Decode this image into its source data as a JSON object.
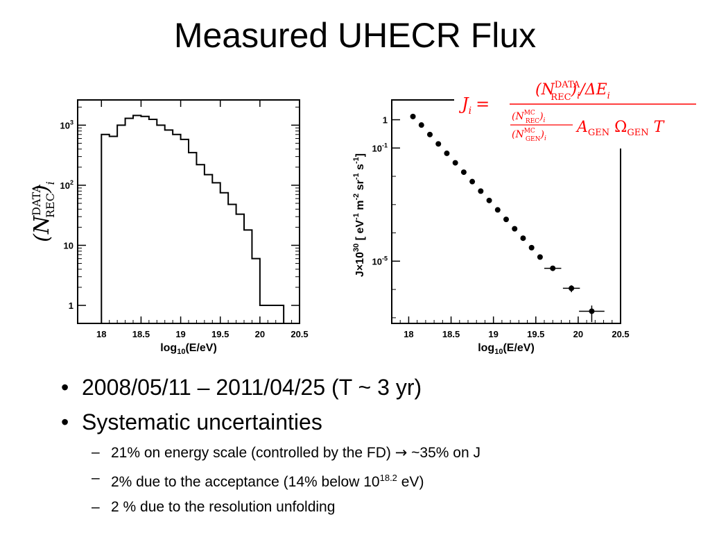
{
  "title": "Measured UHECR Flux",
  "bullets": [
    {
      "text": "2008/05/11 – 2011/04/25 (T ~ 3 yr)"
    },
    {
      "text": "Systematic uncertainties"
    }
  ],
  "sub_bullets": [
    {
      "pre": "21% on energy scale (controlled by the FD)",
      "arrow": "→",
      "post": "~35% on J"
    },
    {
      "pre": "2% due to the acceptance (14% below 10",
      "sup": "18.2",
      "post": " eV)"
    },
    {
      "pre": "2 % due to the resolution unfolding"
    }
  ],
  "bullet_marker": "•",
  "dash_marker": "–",
  "formula": {
    "color": "#ff0000",
    "lhs": "J",
    "lhs_sub": "i",
    "eq": "=",
    "num": "(N^DATA_REC)_i / ΔE_i",
    "den_frac_top": "(N^MC_REC)_i",
    "den_frac_bot": "(N^MC_GEN)_i",
    "den_rest": "A_GEN Ω_GEN T"
  },
  "chart_data": [
    {
      "type": "histogram",
      "ylabel": "(N^DATA_REC)_i",
      "xlabel": "log10(E/eV)",
      "x_ticks": [
        "18",
        "18.5",
        "19",
        "19.5",
        "20",
        "20.5"
      ],
      "y_ticks": [
        "1",
        "10",
        "10^2",
        "10^3"
      ],
      "xlim": [
        17.7,
        20.5
      ],
      "ylim_log10": [
        -0.3,
        3.42
      ],
      "log_y": true,
      "bin_edges": [
        18.0,
        18.1,
        18.2,
        18.3,
        18.4,
        18.5,
        18.6,
        18.7,
        18.8,
        18.9,
        19.0,
        19.1,
        19.2,
        19.3,
        19.4,
        19.5,
        19.6,
        19.7,
        19.8,
        19.9,
        20.0,
        20.1,
        20.2,
        20.3
      ],
      "counts": [
        700,
        650,
        1000,
        1300,
        1450,
        1400,
        1250,
        1000,
        830,
        700,
        580,
        350,
        220,
        150,
        110,
        75,
        48,
        33,
        18,
        6,
        1,
        1,
        1
      ]
    },
    {
      "type": "scatter",
      "ylabel": "J × 10^30  [ eV^-1 m^-2 sr^-1 s^-1 ]",
      "xlabel": "log10(E/eV)",
      "x_ticks": [
        "18",
        "18.5",
        "19",
        "19.5",
        "20",
        "20.5"
      ],
      "y_ticks": [
        "1",
        "10^-1",
        "10^-5"
      ],
      "xlim": [
        17.8,
        20.5
      ],
      "ylim_log10": [
        -7.2,
        0.7
      ],
      "log_y": true,
      "points": [
        {
          "x": 18.05,
          "y": 1.3
        },
        {
          "x": 18.15,
          "y": 0.65
        },
        {
          "x": 18.25,
          "y": 0.3
        },
        {
          "x": 18.35,
          "y": 0.14
        },
        {
          "x": 18.45,
          "y": 0.065
        },
        {
          "x": 18.55,
          "y": 0.03
        },
        {
          "x": 18.65,
          "y": 0.014
        },
        {
          "x": 18.75,
          "y": 0.0065
        },
        {
          "x": 18.85,
          "y": 0.003
        },
        {
          "x": 18.95,
          "y": 0.0014
        },
        {
          "x": 19.05,
          "y": 0.00065
        },
        {
          "x": 19.15,
          "y": 0.0003
        },
        {
          "x": 19.25,
          "y": 0.00014
        },
        {
          "x": 19.35,
          "y": 6.5e-05
        },
        {
          "x": 19.45,
          "y": 3e-05
        },
        {
          "x": 19.55,
          "y": 1.4e-05
        },
        {
          "x": 19.7,
          "y": 5.6e-06,
          "xerr": 0.1,
          "yerr_lo": 8e-07,
          "yerr_hi": 8e-07
        },
        {
          "x": 19.92,
          "y": 1.1e-06,
          "xerr": 0.1,
          "yerr_lo": 3e-07,
          "yerr_hi": 3e-07
        },
        {
          "x": 20.16,
          "y": 1.7e-07,
          "xerr": 0.15,
          "yerr_lo": 1e-07,
          "yerr_hi": 1e-07
        }
      ]
    }
  ]
}
